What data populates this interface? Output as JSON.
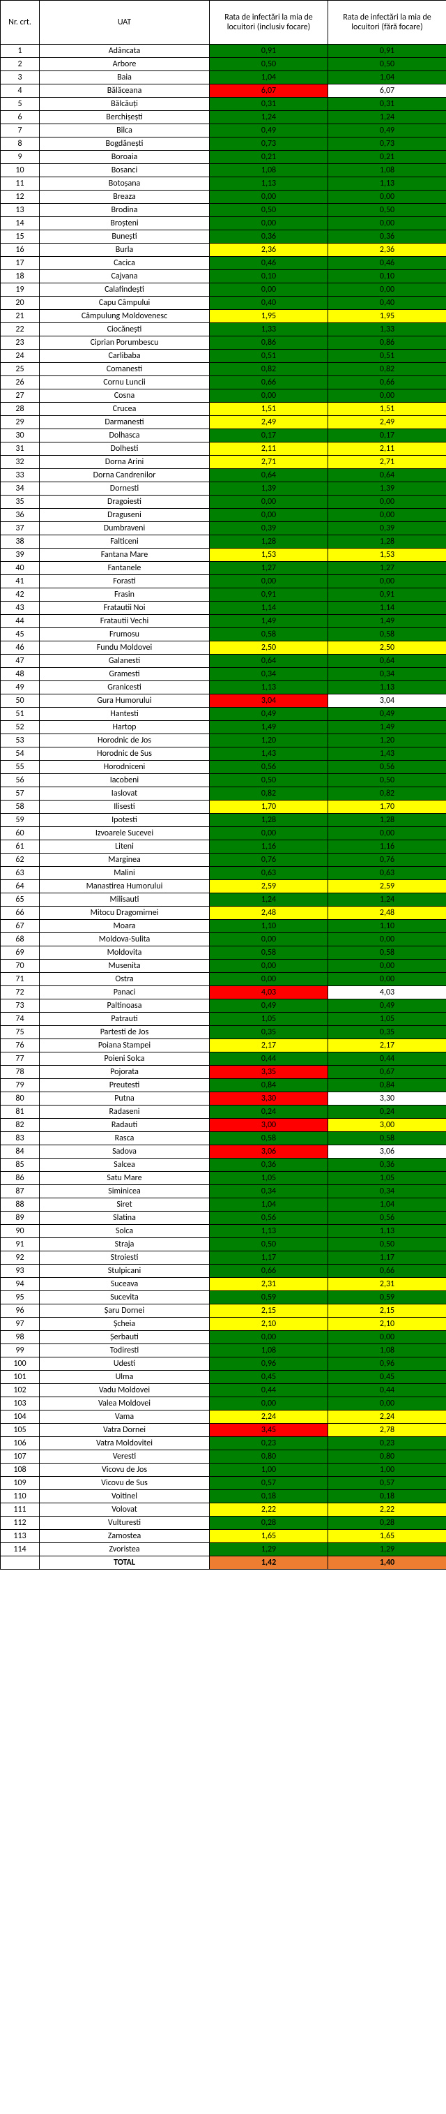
{
  "headers": {
    "nr": "Nr. crt.",
    "uat": "UAT",
    "rate1": "Rata de infectări la mia de locuitori (inclusiv focare)",
    "rate2": "Rata de infectări la mia de locuitori (fără focare)"
  },
  "colors": {
    "green": "#008000",
    "yellow": "#ffff00",
    "red": "#ff0000",
    "orange": "#ed7d31",
    "white": "#ffffff"
  },
  "rows": [
    {
      "nr": "1",
      "uat": "Adâncata",
      "r1": "0,91",
      "c1": "green",
      "r2": "0,91",
      "c2": "green"
    },
    {
      "nr": "2",
      "uat": "Arbore",
      "r1": "0,50",
      "c1": "green",
      "r2": "0,50",
      "c2": "green"
    },
    {
      "nr": "3",
      "uat": "Baia",
      "r1": "1,04",
      "c1": "green",
      "r2": "1,04",
      "c2": "green"
    },
    {
      "nr": "4",
      "uat": "Bălăceana",
      "r1": "6,07",
      "c1": "red",
      "r2": "6,07",
      "c2": "white"
    },
    {
      "nr": "5",
      "uat": "Bălcăuți",
      "r1": "0,31",
      "c1": "green",
      "r2": "0,31",
      "c2": "green"
    },
    {
      "nr": "6",
      "uat": "Berchișești",
      "r1": "1,24",
      "c1": "green",
      "r2": "1,24",
      "c2": "green"
    },
    {
      "nr": "7",
      "uat": "Bilca",
      "r1": "0,49",
      "c1": "green",
      "r2": "0,49",
      "c2": "green"
    },
    {
      "nr": "8",
      "uat": "Bogdănești",
      "r1": "0,73",
      "c1": "green",
      "r2": "0,73",
      "c2": "green"
    },
    {
      "nr": "9",
      "uat": "Boroaia",
      "r1": "0,21",
      "c1": "green",
      "r2": "0,21",
      "c2": "green"
    },
    {
      "nr": "10",
      "uat": "Bosanci",
      "r1": "1,08",
      "c1": "green",
      "r2": "1,08",
      "c2": "green"
    },
    {
      "nr": "11",
      "uat": "Botoșana",
      "r1": "1,13",
      "c1": "green",
      "r2": "1,13",
      "c2": "green"
    },
    {
      "nr": "12",
      "uat": "Breaza",
      "r1": "0,00",
      "c1": "green",
      "r2": "0,00",
      "c2": "green"
    },
    {
      "nr": "13",
      "uat": "Brodina",
      "r1": "0,50",
      "c1": "green",
      "r2": "0,50",
      "c2": "green"
    },
    {
      "nr": "14",
      "uat": "Broșteni",
      "r1": "0,00",
      "c1": "green",
      "r2": "0,00",
      "c2": "green"
    },
    {
      "nr": "15",
      "uat": "Bunești",
      "r1": "0,36",
      "c1": "green",
      "r2": "0,36",
      "c2": "green"
    },
    {
      "nr": "16",
      "uat": "Burla",
      "r1": "2,36",
      "c1": "yellow",
      "r2": "2,36",
      "c2": "yellow"
    },
    {
      "nr": "17",
      "uat": "Cacica",
      "r1": "0,46",
      "c1": "green",
      "r2": "0,46",
      "c2": "green"
    },
    {
      "nr": "18",
      "uat": "Cajvana",
      "r1": "0,10",
      "c1": "green",
      "r2": "0,10",
      "c2": "green"
    },
    {
      "nr": "19",
      "uat": "Calafindești",
      "r1": "0,00",
      "c1": "green",
      "r2": "0,00",
      "c2": "green"
    },
    {
      "nr": "20",
      "uat": "Capu Câmpului",
      "r1": "0,40",
      "c1": "green",
      "r2": "0,40",
      "c2": "green"
    },
    {
      "nr": "21",
      "uat": "Câmpulung Moldovenesc",
      "r1": "1,95",
      "c1": "yellow",
      "r2": "1,95",
      "c2": "yellow"
    },
    {
      "nr": "22",
      "uat": "Ciocănești",
      "r1": "1,33",
      "c1": "green",
      "r2": "1,33",
      "c2": "green"
    },
    {
      "nr": "23",
      "uat": "Ciprian Porumbescu",
      "r1": "0,86",
      "c1": "green",
      "r2": "0,86",
      "c2": "green"
    },
    {
      "nr": "24",
      "uat": "Carlibaba",
      "r1": "0,51",
      "c1": "green",
      "r2": "0,51",
      "c2": "green"
    },
    {
      "nr": "25",
      "uat": "Comanesti",
      "r1": "0,82",
      "c1": "green",
      "r2": "0,82",
      "c2": "green"
    },
    {
      "nr": "26",
      "uat": "Cornu Luncii",
      "r1": "0,66",
      "c1": "green",
      "r2": "0,66",
      "c2": "green"
    },
    {
      "nr": "27",
      "uat": "Cosna",
      "r1": "0,00",
      "c1": "green",
      "r2": "0,00",
      "c2": "green"
    },
    {
      "nr": "28",
      "uat": "Crucea",
      "r1": "1,51",
      "c1": "yellow",
      "r2": "1,51",
      "c2": "yellow"
    },
    {
      "nr": "29",
      "uat": "Darmanesti",
      "r1": "2,49",
      "c1": "yellow",
      "r2": "2,49",
      "c2": "yellow"
    },
    {
      "nr": "30",
      "uat": "Dolhasca",
      "r1": "0,17",
      "c1": "green",
      "r2": "0,17",
      "c2": "green"
    },
    {
      "nr": "31",
      "uat": "Dolhesti",
      "r1": "2,11",
      "c1": "yellow",
      "r2": "2,11",
      "c2": "yellow"
    },
    {
      "nr": "32",
      "uat": "Dorna Arini",
      "r1": "2,71",
      "c1": "yellow",
      "r2": "2,71",
      "c2": "yellow"
    },
    {
      "nr": "33",
      "uat": "Dorna Candrenilor",
      "r1": "0,64",
      "c1": "green",
      "r2": "0,64",
      "c2": "green"
    },
    {
      "nr": "34",
      "uat": "Dornesti",
      "r1": "1,39",
      "c1": "green",
      "r2": "1,39",
      "c2": "green"
    },
    {
      "nr": "35",
      "uat": "Dragoiesti",
      "r1": "0,00",
      "c1": "green",
      "r2": "0,00",
      "c2": "green"
    },
    {
      "nr": "36",
      "uat": "Draguseni",
      "r1": "0,00",
      "c1": "green",
      "r2": "0,00",
      "c2": "green"
    },
    {
      "nr": "37",
      "uat": "Dumbraveni",
      "r1": "0,39",
      "c1": "green",
      "r2": "0,39",
      "c2": "green"
    },
    {
      "nr": "38",
      "uat": "Falticeni",
      "r1": "1,28",
      "c1": "green",
      "r2": "1,28",
      "c2": "green"
    },
    {
      "nr": "39",
      "uat": "Fantana Mare",
      "r1": "1,53",
      "c1": "yellow",
      "r2": "1,53",
      "c2": "yellow"
    },
    {
      "nr": "40",
      "uat": "Fantanele",
      "r1": "1,27",
      "c1": "green",
      "r2": "1,27",
      "c2": "green"
    },
    {
      "nr": "41",
      "uat": "Forasti",
      "r1": "0,00",
      "c1": "green",
      "r2": "0,00",
      "c2": "green"
    },
    {
      "nr": "42",
      "uat": "Frasin",
      "r1": "0,91",
      "c1": "green",
      "r2": "0,91",
      "c2": "green"
    },
    {
      "nr": "43",
      "uat": "Fratautii Noi",
      "r1": "1,14",
      "c1": "green",
      "r2": "1,14",
      "c2": "green"
    },
    {
      "nr": "44",
      "uat": "Fratautii Vechi",
      "r1": "1,49",
      "c1": "green",
      "r2": "1,49",
      "c2": "green"
    },
    {
      "nr": "45",
      "uat": "Frumosu",
      "r1": "0,58",
      "c1": "green",
      "r2": "0,58",
      "c2": "green"
    },
    {
      "nr": "46",
      "uat": "Fundu Moldovei",
      "r1": "2,50",
      "c1": "yellow",
      "r2": "2,50",
      "c2": "yellow"
    },
    {
      "nr": "47",
      "uat": "Galanesti",
      "r1": "0,64",
      "c1": "green",
      "r2": "0,64",
      "c2": "green"
    },
    {
      "nr": "48",
      "uat": "Gramesti",
      "r1": "0,34",
      "c1": "green",
      "r2": "0,34",
      "c2": "green"
    },
    {
      "nr": "49",
      "uat": "Granicesti",
      "r1": "1,13",
      "c1": "green",
      "r2": "1,13",
      "c2": "green"
    },
    {
      "nr": "50",
      "uat": "Gura Humorului",
      "r1": "3,04",
      "c1": "red",
      "r2": "3,04",
      "c2": "white"
    },
    {
      "nr": "51",
      "uat": "Hantesti",
      "r1": "0,49",
      "c1": "green",
      "r2": "0,49",
      "c2": "green"
    },
    {
      "nr": "52",
      "uat": "Hartop",
      "r1": "1,49",
      "c1": "green",
      "r2": "1,49",
      "c2": "green"
    },
    {
      "nr": "53",
      "uat": "Horodnic de Jos",
      "r1": "1,20",
      "c1": "green",
      "r2": "1,20",
      "c2": "green"
    },
    {
      "nr": "54",
      "uat": "Horodnic de Sus",
      "r1": "1,43",
      "c1": "green",
      "r2": "1,43",
      "c2": "green"
    },
    {
      "nr": "55",
      "uat": "Horodniceni",
      "r1": "0,56",
      "c1": "green",
      "r2": "0,56",
      "c2": "green"
    },
    {
      "nr": "56",
      "uat": "Iacobeni",
      "r1": "0,50",
      "c1": "green",
      "r2": "0,50",
      "c2": "green"
    },
    {
      "nr": "57",
      "uat": "Iaslovat",
      "r1": "0,82",
      "c1": "green",
      "r2": "0,82",
      "c2": "green"
    },
    {
      "nr": "58",
      "uat": "Ilisesti",
      "r1": "1,70",
      "c1": "yellow",
      "r2": "1,70",
      "c2": "yellow"
    },
    {
      "nr": "59",
      "uat": "Ipotesti",
      "r1": "1,28",
      "c1": "green",
      "r2": "1,28",
      "c2": "green"
    },
    {
      "nr": "60",
      "uat": "Izvoarele Sucevei",
      "r1": "0,00",
      "c1": "green",
      "r2": "0,00",
      "c2": "green"
    },
    {
      "nr": "61",
      "uat": "Liteni",
      "r1": "1,16",
      "c1": "green",
      "r2": "1,16",
      "c2": "green"
    },
    {
      "nr": "62",
      "uat": "Marginea",
      "r1": "0,76",
      "c1": "green",
      "r2": "0,76",
      "c2": "green"
    },
    {
      "nr": "63",
      "uat": "Malini",
      "r1": "0,63",
      "c1": "green",
      "r2": "0,63",
      "c2": "green"
    },
    {
      "nr": "64",
      "uat": "Manastirea Humorului",
      "r1": "2,59",
      "c1": "yellow",
      "r2": "2,59",
      "c2": "yellow"
    },
    {
      "nr": "65",
      "uat": "Milisauti",
      "r1": "1,24",
      "c1": "green",
      "r2": "1,24",
      "c2": "green"
    },
    {
      "nr": "66",
      "uat": "Mitocu Dragomirnei",
      "r1": "2,48",
      "c1": "yellow",
      "r2": "2,48",
      "c2": "yellow"
    },
    {
      "nr": "67",
      "uat": "Moara",
      "r1": "1,10",
      "c1": "green",
      "r2": "1,10",
      "c2": "green"
    },
    {
      "nr": "68",
      "uat": "Moldova-Sulita",
      "r1": "0,00",
      "c1": "green",
      "r2": "0,00",
      "c2": "green"
    },
    {
      "nr": "69",
      "uat": "Moldovita",
      "r1": "0,58",
      "c1": "green",
      "r2": "0,58",
      "c2": "green"
    },
    {
      "nr": "70",
      "uat": "Musenita",
      "r1": "0,00",
      "c1": "green",
      "r2": "0,00",
      "c2": "green"
    },
    {
      "nr": "71",
      "uat": "Ostra",
      "r1": "0,00",
      "c1": "green",
      "r2": "0,00",
      "c2": "green"
    },
    {
      "nr": "72",
      "uat": "Panaci",
      "r1": "4,03",
      "c1": "red",
      "r2": "4,03",
      "c2": "white"
    },
    {
      "nr": "73",
      "uat": "Paltinoasa",
      "r1": "0,49",
      "c1": "green",
      "r2": "0,49",
      "c2": "green"
    },
    {
      "nr": "74",
      "uat": "Patrauti",
      "r1": "1,05",
      "c1": "green",
      "r2": "1,05",
      "c2": "green"
    },
    {
      "nr": "75",
      "uat": "Partesti de Jos",
      "r1": "0,35",
      "c1": "green",
      "r2": "0,35",
      "c2": "green"
    },
    {
      "nr": "76",
      "uat": "Poiana Stampei",
      "r1": "2,17",
      "c1": "yellow",
      "r2": "2,17",
      "c2": "yellow"
    },
    {
      "nr": "77",
      "uat": "Poieni Solca",
      "r1": "0,44",
      "c1": "green",
      "r2": "0,44",
      "c2": "green"
    },
    {
      "nr": "78",
      "uat": "Pojorata",
      "r1": "3,35",
      "c1": "red",
      "r2": "0,67",
      "c2": "green"
    },
    {
      "nr": "79",
      "uat": "Preutesti",
      "r1": "0,84",
      "c1": "green",
      "r2": "0,84",
      "c2": "green"
    },
    {
      "nr": "80",
      "uat": "Putna",
      "r1": "3,30",
      "c1": "red",
      "r2": "3,30",
      "c2": "white"
    },
    {
      "nr": "81",
      "uat": "Radaseni",
      "r1": "0,24",
      "c1": "green",
      "r2": "0,24",
      "c2": "green"
    },
    {
      "nr": "82",
      "uat": "Radauti",
      "r1": "3,00",
      "c1": "red",
      "r2": "3,00",
      "c2": "yellow"
    },
    {
      "nr": "83",
      "uat": "Rasca",
      "r1": "0,58",
      "c1": "green",
      "r2": "0,58",
      "c2": "green"
    },
    {
      "nr": "84",
      "uat": "Sadova",
      "r1": "3,06",
      "c1": "red",
      "r2": "3,06",
      "c2": "white"
    },
    {
      "nr": "85",
      "uat": "Salcea",
      "r1": "0,36",
      "c1": "green",
      "r2": "0,36",
      "c2": "green"
    },
    {
      "nr": "86",
      "uat": "Satu Mare",
      "r1": "1,05",
      "c1": "green",
      "r2": "1,05",
      "c2": "green"
    },
    {
      "nr": "87",
      "uat": "Siminicea",
      "r1": "0,34",
      "c1": "green",
      "r2": "0,34",
      "c2": "green"
    },
    {
      "nr": "88",
      "uat": "Siret",
      "r1": "1,04",
      "c1": "green",
      "r2": "1,04",
      "c2": "green"
    },
    {
      "nr": "89",
      "uat": "Slatina",
      "r1": "0,56",
      "c1": "green",
      "r2": "0,56",
      "c2": "green"
    },
    {
      "nr": "90",
      "uat": "Solca",
      "r1": "1,13",
      "c1": "green",
      "r2": "1,13",
      "c2": "green"
    },
    {
      "nr": "91",
      "uat": "Straja",
      "r1": "0,50",
      "c1": "green",
      "r2": "0,50",
      "c2": "green"
    },
    {
      "nr": "92",
      "uat": "Stroiesti",
      "r1": "1,17",
      "c1": "green",
      "r2": "1,17",
      "c2": "green"
    },
    {
      "nr": "93",
      "uat": "Stulpicani",
      "r1": "0,66",
      "c1": "green",
      "r2": "0,66",
      "c2": "green"
    },
    {
      "nr": "94",
      "uat": "Suceava",
      "r1": "2,31",
      "c1": "yellow",
      "r2": "2,31",
      "c2": "yellow"
    },
    {
      "nr": "95",
      "uat": "Sucevita",
      "r1": "0,59",
      "c1": "green",
      "r2": "0,59",
      "c2": "green"
    },
    {
      "nr": "96",
      "uat": "Șaru Dornei",
      "r1": "2,15",
      "c1": "yellow",
      "r2": "2,15",
      "c2": "yellow"
    },
    {
      "nr": "97",
      "uat": "Șcheia",
      "r1": "2,10",
      "c1": "yellow",
      "r2": "2,10",
      "c2": "yellow"
    },
    {
      "nr": "98",
      "uat": "Șerbauti",
      "r1": "0,00",
      "c1": "green",
      "r2": "0,00",
      "c2": "green"
    },
    {
      "nr": "99",
      "uat": "Todiresti",
      "r1": "1,08",
      "c1": "green",
      "r2": "1,08",
      "c2": "green"
    },
    {
      "nr": "100",
      "uat": "Udesti",
      "r1": "0,96",
      "c1": "green",
      "r2": "0,96",
      "c2": "green"
    },
    {
      "nr": "101",
      "uat": "Ulma",
      "r1": "0,45",
      "c1": "green",
      "r2": "0,45",
      "c2": "green"
    },
    {
      "nr": "102",
      "uat": "Vadu Moldovei",
      "r1": "0,44",
      "c1": "green",
      "r2": "0,44",
      "c2": "green"
    },
    {
      "nr": "103",
      "uat": "Valea Moldovei",
      "r1": "0,00",
      "c1": "green",
      "r2": "0,00",
      "c2": "green"
    },
    {
      "nr": "104",
      "uat": "Vama",
      "r1": "2,24",
      "c1": "yellow",
      "r2": "2,24",
      "c2": "yellow"
    },
    {
      "nr": "105",
      "uat": "Vatra Dornei",
      "r1": "3,45",
      "c1": "red",
      "r2": "2,78",
      "c2": "yellow"
    },
    {
      "nr": "106",
      "uat": "Vatra Moldovitei",
      "r1": "0,23",
      "c1": "green",
      "r2": "0,23",
      "c2": "green"
    },
    {
      "nr": "107",
      "uat": "Veresti",
      "r1": "0,80",
      "c1": "green",
      "r2": "0,80",
      "c2": "green"
    },
    {
      "nr": "108",
      "uat": "Vicovu de Jos",
      "r1": "1,00",
      "c1": "green",
      "r2": "1,00",
      "c2": "green"
    },
    {
      "nr": "109",
      "uat": "Vicovu de Sus",
      "r1": "0,57",
      "c1": "green",
      "r2": "0,57",
      "c2": "green"
    },
    {
      "nr": "110",
      "uat": "Voitinel",
      "r1": "0,18",
      "c1": "green",
      "r2": "0,18",
      "c2": "green"
    },
    {
      "nr": "111",
      "uat": "Volovat",
      "r1": "2,22",
      "c1": "yellow",
      "r2": "2,22",
      "c2": "yellow"
    },
    {
      "nr": "112",
      "uat": "Vulturesti",
      "r1": "0,28",
      "c1": "green",
      "r2": "0,28",
      "c2": "green"
    },
    {
      "nr": "113",
      "uat": "Zamostea",
      "r1": "1,65",
      "c1": "yellow",
      "r2": "1,65",
      "c2": "yellow"
    },
    {
      "nr": "114",
      "uat": "Zvoristea",
      "r1": "1,29",
      "c1": "green",
      "r2": "1,29",
      "c2": "green"
    }
  ],
  "total": {
    "label": "TOTAL",
    "r1": "1,42",
    "c1": "orange",
    "r2": "1,40",
    "c2": "orange"
  }
}
